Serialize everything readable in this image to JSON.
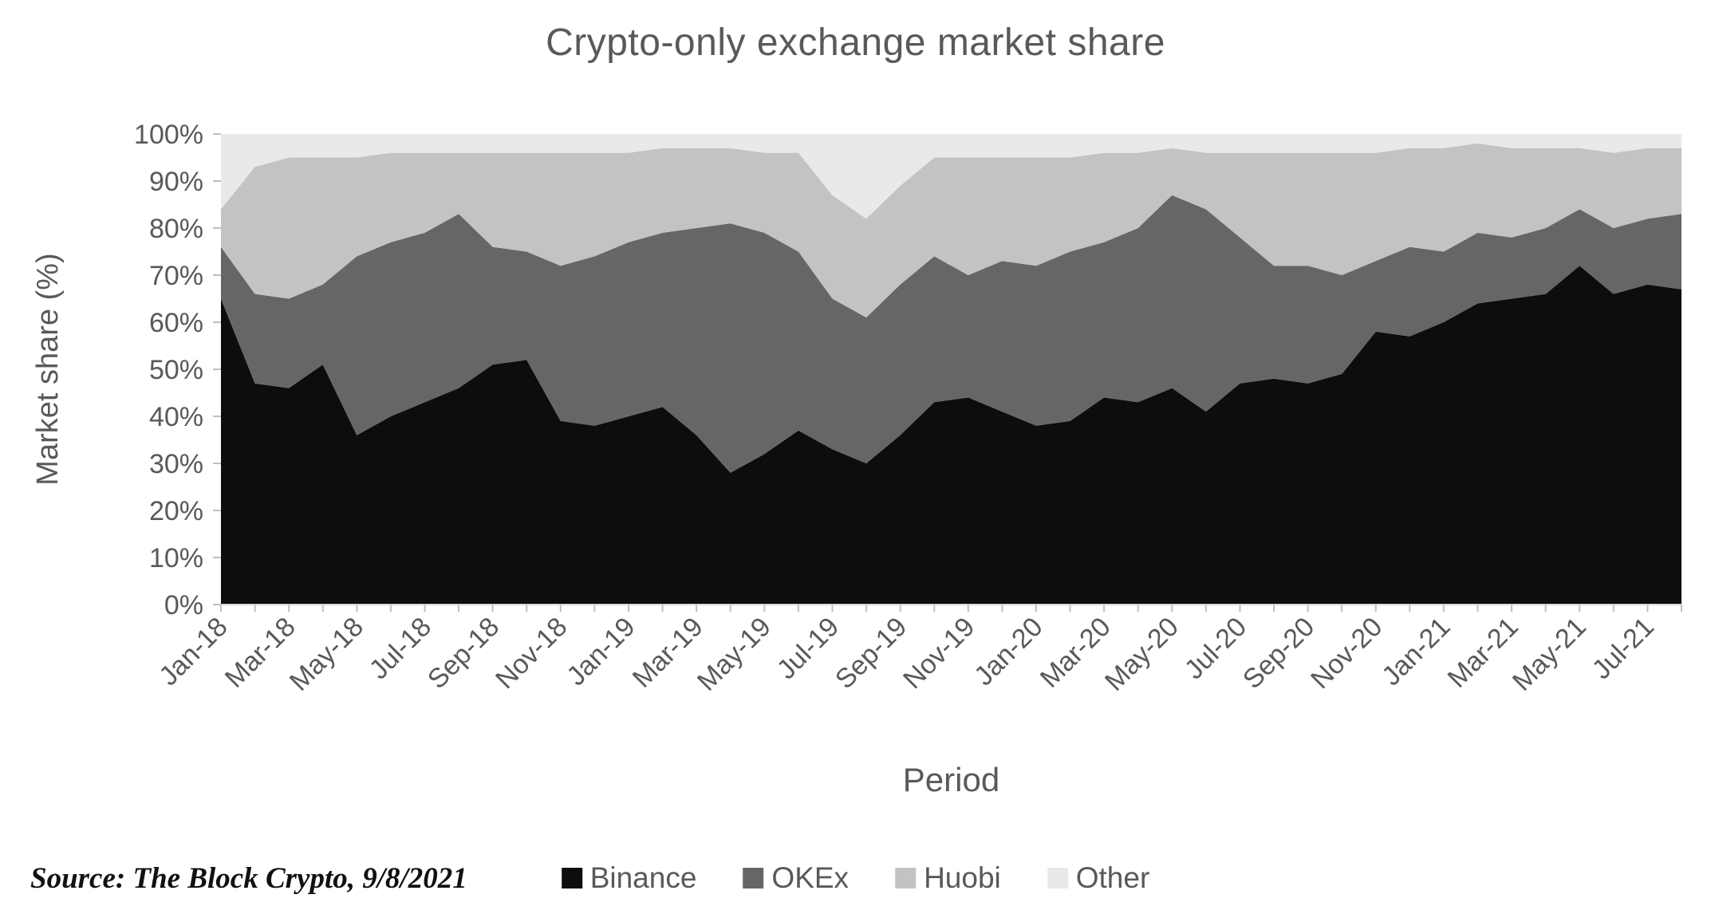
{
  "source": "Source: The Block Crypto, 9/8/2021",
  "chart_data": {
    "type": "area",
    "stacked": true,
    "percent_stacked": true,
    "title": "Crypto-only exchange market share",
    "xlabel": "Period",
    "ylabel": "Market share (%)",
    "ylim": [
      0,
      100
    ],
    "y_tick_step": 10,
    "y_tick_suffix": "%",
    "grid": false,
    "legend_position": "bottom",
    "x_label_every": 2,
    "x": [
      "Jan-18",
      "Feb-18",
      "Mar-18",
      "Apr-18",
      "May-18",
      "Jun-18",
      "Jul-18",
      "Aug-18",
      "Sep-18",
      "Oct-18",
      "Nov-18",
      "Dec-18",
      "Jan-19",
      "Feb-19",
      "Mar-19",
      "Apr-19",
      "May-19",
      "Jun-19",
      "Jul-19",
      "Aug-19",
      "Sep-19",
      "Oct-19",
      "Nov-19",
      "Dec-19",
      "Jan-20",
      "Feb-20",
      "Mar-20",
      "Apr-20",
      "May-20",
      "Jun-20",
      "Jul-20",
      "Aug-20",
      "Sep-20",
      "Oct-20",
      "Nov-20",
      "Dec-20",
      "Jan-21",
      "Feb-21",
      "Mar-21",
      "Apr-21",
      "May-21",
      "Jun-21",
      "Jul-21",
      "Aug-21"
    ],
    "series": [
      {
        "name": "Binance",
        "color": "#0d0d0d",
        "values": [
          65,
          47,
          46,
          51,
          36,
          40,
          43,
          46,
          51,
          52,
          39,
          38,
          40,
          42,
          36,
          28,
          32,
          37,
          33,
          30,
          36,
          43,
          44,
          41,
          38,
          39,
          44,
          43,
          46,
          41,
          47,
          48,
          47,
          49,
          58,
          57,
          60,
          64,
          65,
          66,
          72,
          66,
          68,
          67
        ]
      },
      {
        "name": "OKEx",
        "color": "#666666",
        "values": [
          11,
          19,
          19,
          17,
          38,
          37,
          36,
          37,
          25,
          23,
          33,
          36,
          37,
          37,
          44,
          53,
          47,
          38,
          32,
          31,
          32,
          31,
          26,
          32,
          34,
          36,
          33,
          37,
          41,
          43,
          31,
          24,
          25,
          21,
          15,
          19,
          15,
          15,
          13,
          14,
          12,
          14,
          14,
          16
        ]
      },
      {
        "name": "Huobi",
        "color": "#c3c3c3",
        "values": [
          8,
          27,
          30,
          27,
          21,
          19,
          17,
          13,
          20,
          21,
          24,
          22,
          19,
          18,
          17,
          16,
          17,
          21,
          22,
          21,
          21,
          21,
          25,
          22,
          23,
          20,
          19,
          16,
          10,
          12,
          18,
          24,
          24,
          26,
          23,
          21,
          22,
          19,
          19,
          17,
          13,
          16,
          15,
          14
        ]
      },
      {
        "name": "Other",
        "color": "#e9e9e9",
        "values": [
          16,
          7,
          5,
          5,
          5,
          4,
          4,
          4,
          4,
          4,
          4,
          4,
          4,
          3,
          3,
          3,
          4,
          4,
          13,
          18,
          11,
          5,
          5,
          5,
          5,
          5,
          4,
          4,
          3,
          4,
          4,
          4,
          4,
          4,
          4,
          3,
          3,
          2,
          3,
          3,
          3,
          4,
          3,
          3
        ]
      }
    ],
    "style": {
      "axis_text_color": "#595959",
      "axis_line_color": "#d9d9d9",
      "tick_color": "#bfbfbf",
      "title_color": "#595959"
    }
  }
}
